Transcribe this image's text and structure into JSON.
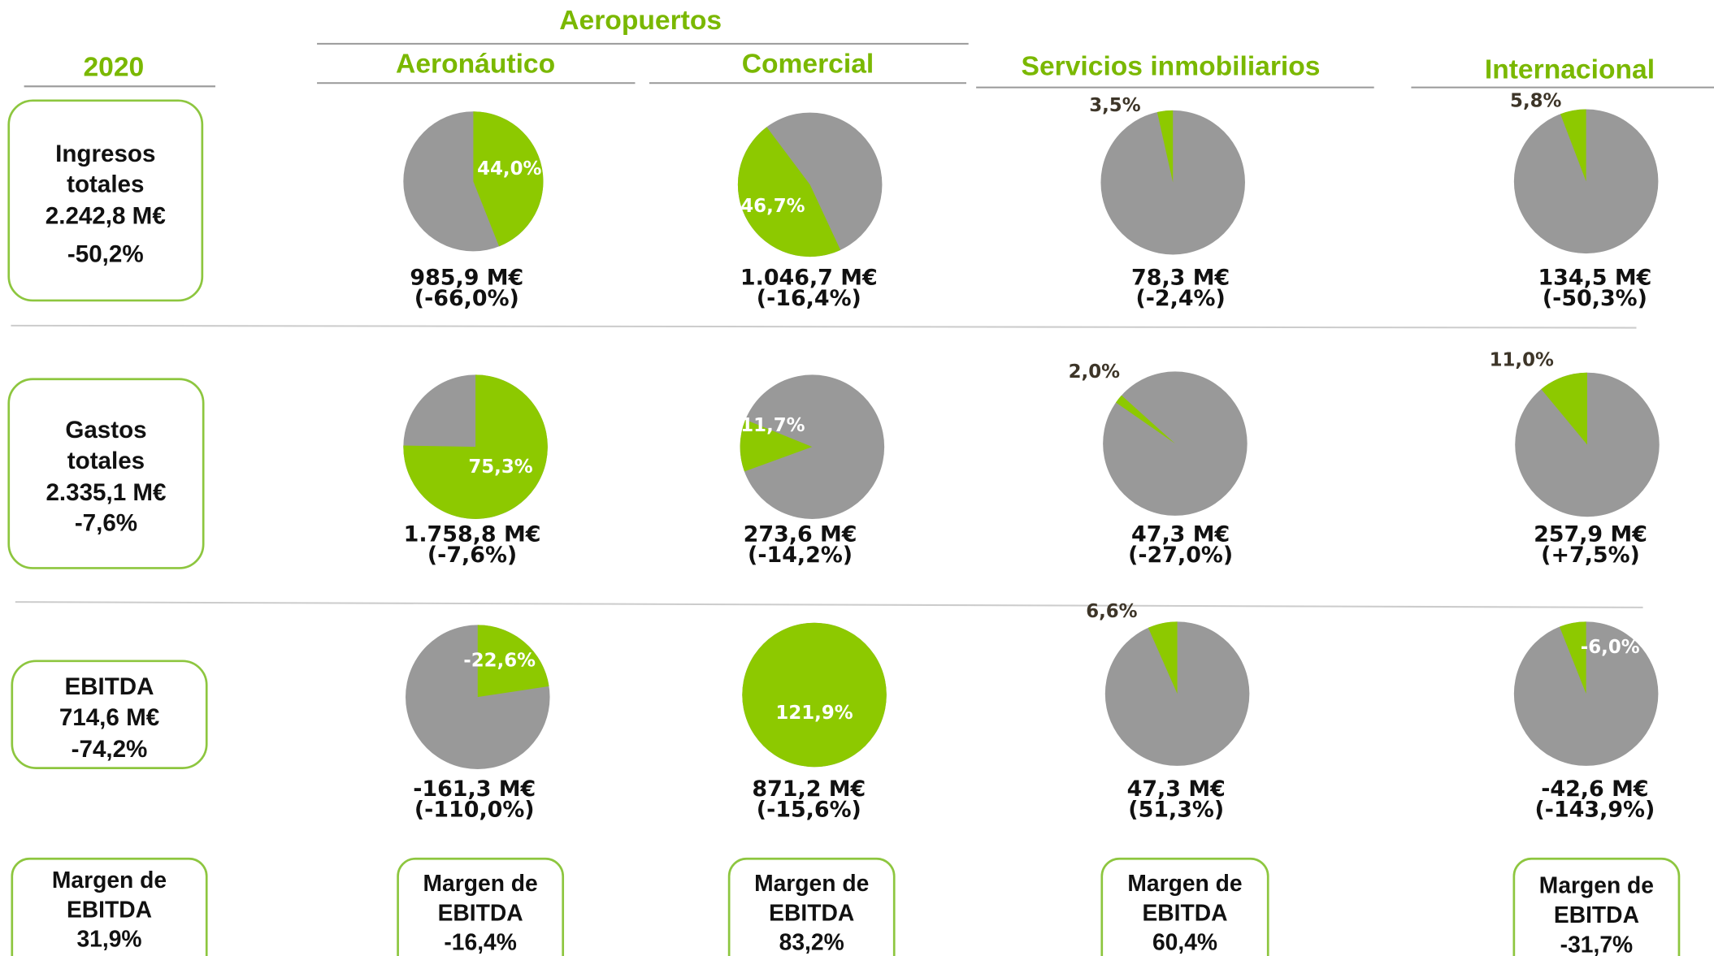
{
  "header": {
    "group": "Aeropuertos",
    "year": "2020",
    "columns": [
      "Aeronáutico",
      "Comercial",
      "Servicios inmobiliarios",
      "Internacional"
    ]
  },
  "rows": [
    {
      "lines": [
        "Ingresos",
        "totales",
        "2.242,8 M€",
        "-50,2%"
      ]
    },
    {
      "lines": [
        "Gastos",
        "totales",
        "2.335,1 M€",
        "-7,6%"
      ]
    },
    {
      "lines": [
        "EBITDA",
        "714,6 M€",
        "-74,2%"
      ]
    }
  ],
  "chart_data": [
    {
      "type": "pie",
      "values": [
        44.0
      ],
      "value_labels": [
        "44,0%"
      ],
      "color": "#8dc900",
      "annotations": [
        "985,9 M€",
        "(-66,0%)"
      ]
    },
    {
      "type": "pie",
      "values": [
        46.7
      ],
      "value_labels": [
        "46,7%"
      ],
      "color": "#8dc900",
      "annotations": [
        "1.046,7 M€",
        "(-16,4%)"
      ]
    },
    {
      "type": "pie",
      "values": [
        3.5
      ],
      "value_labels": [
        "3,5%"
      ],
      "color": "#8dc900",
      "annotations": [
        "78,3 M€",
        "(-2,4%)"
      ]
    },
    {
      "type": "pie",
      "values": [
        5.8
      ],
      "value_labels": [
        "5,8%"
      ],
      "color": "#8dc900",
      "annotations": [
        "134,5 M€",
        "(-50,3%)"
      ]
    },
    {
      "type": "pie",
      "values": [
        75.3
      ],
      "value_labels": [
        "75,3%"
      ],
      "color": "#8dc900",
      "annotations": [
        "1.758,8 M€",
        "(-7,6%)"
      ]
    },
    {
      "type": "pie",
      "values": [
        11.7
      ],
      "value_labels": [
        "11,7%"
      ],
      "color": "#8dc900",
      "annotations": [
        "273,6 M€",
        "(-14,2%)"
      ]
    },
    {
      "type": "pie",
      "values": [
        2.0
      ],
      "value_labels": [
        "2,0%"
      ],
      "color": "#8dc900",
      "annotations": [
        "47,3 M€",
        "(-27,0%)"
      ]
    },
    {
      "type": "pie",
      "values": [
        11.0
      ],
      "value_labels": [
        "11,0%"
      ],
      "color": "#8dc900",
      "annotations": [
        "257,9 M€",
        "(+7,5%)"
      ]
    },
    {
      "type": "pie",
      "values": [
        -22.6
      ],
      "value_labels": [
        "-22,6%"
      ],
      "color": "#8dc900",
      "annotations": [
        "-161,3 M€",
        "(-110,0%)"
      ]
    },
    {
      "type": "pie",
      "values": [
        121.9
      ],
      "value_labels": [
        "121,9%"
      ],
      "color": "#8dc900",
      "annotations": [
        "871,2 M€",
        "(-15,6%)"
      ]
    },
    {
      "type": "pie",
      "values": [
        6.6
      ],
      "value_labels": [
        "6,6%"
      ],
      "color": "#8dc900",
      "annotations": [
        "47,3 M€",
        "(51,3%)"
      ]
    },
    {
      "type": "pie",
      "values": [
        -6.0
      ],
      "value_labels": [
        "-6,0%"
      ],
      "color": "#8dc900",
      "annotations": [
        "-42,6 M€",
        "(-143,9%)"
      ]
    }
  ],
  "margins": [
    {
      "lines": [
        "Margen de",
        "EBITDA",
        "31,9%"
      ]
    },
    {
      "lines": [
        "Margen de",
        "EBITDA",
        "-16,4%"
      ]
    },
    {
      "lines": [
        "Margen de",
        "EBITDA",
        "83,2%"
      ]
    },
    {
      "lines": [
        "Margen de",
        "EBITDA",
        "60,4%"
      ]
    },
    {
      "lines": [
        "Margen de",
        "EBITDA",
        "-31,7%"
      ]
    }
  ]
}
